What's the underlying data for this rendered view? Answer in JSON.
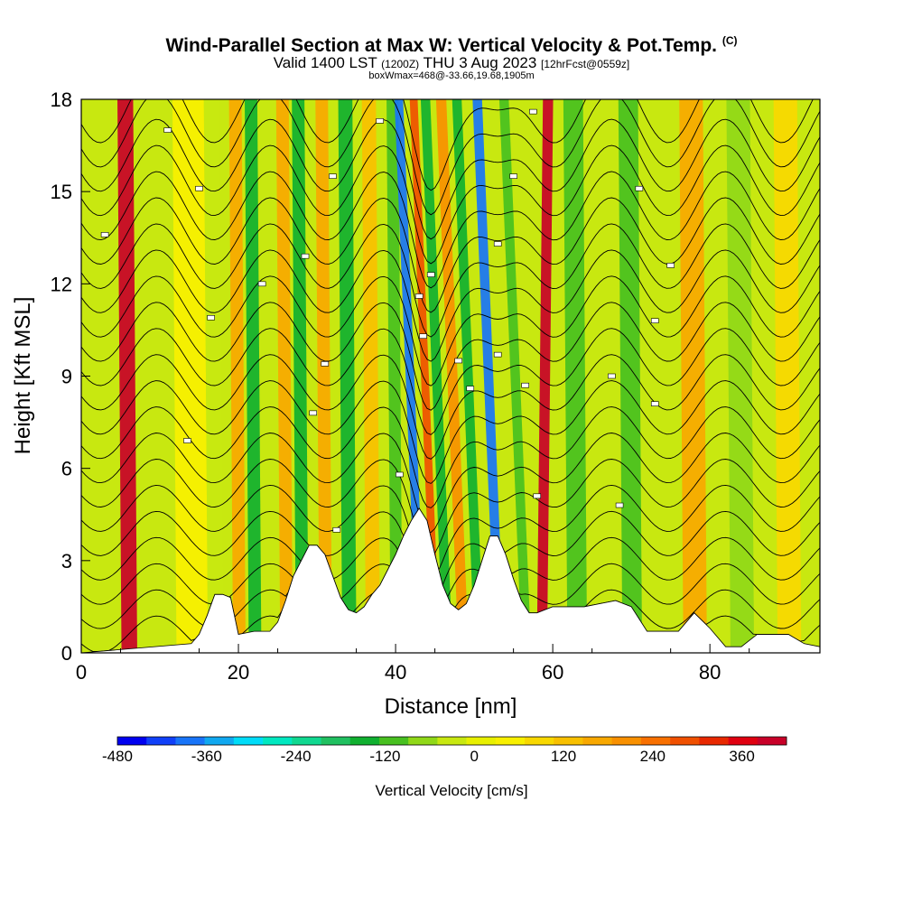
{
  "header": {
    "title": "Wind-Parallel Section at Max W: Vertical Velocity & Pot.Temp.",
    "copyright": "(C)",
    "valid_prefix": "Valid 1400 LST",
    "utc": "(1200Z)",
    "valid_date": "THU 3 Aug 2023",
    "forecast": "[12hrFcst@0559z]",
    "box_info": "boxWmax=468@-33.66,19.68,1905m"
  },
  "chart_data": {
    "type": "heatmap",
    "xlabel": "Distance [nm]",
    "ylabel": "Height [Kft MSL]",
    "xlim": [
      0,
      94
    ],
    "ylim": [
      0,
      18
    ],
    "x_ticks": [
      0,
      20,
      40,
      60,
      80
    ],
    "y_ticks": [
      0,
      3,
      6,
      9,
      12,
      15,
      18
    ],
    "colorbar": {
      "label": "Vertical Velocity [cm/s]",
      "min": -480,
      "max": 420,
      "tick_values": [
        -480,
        -360,
        -240,
        -120,
        0,
        120,
        240,
        360
      ],
      "tick_labels": [
        "-480",
        "-360",
        "-240",
        "-120",
        "0",
        "120",
        "240",
        "360"
      ],
      "colors": [
        "#0000f0",
        "#1040f8",
        "#1874f8",
        "#10a8f0",
        "#00dcf8",
        "#00e8c0",
        "#10d890",
        "#20c060",
        "#10b030",
        "#48c020",
        "#90d818",
        "#c8e810",
        "#e8f000",
        "#f8f000",
        "#f8d800",
        "#f8c000",
        "#f8a800",
        "#f89000",
        "#f87000",
        "#f05000",
        "#e82800",
        "#e00010",
        "#c80028"
      ]
    },
    "vertical_velocity_bands": [
      {
        "x": 6,
        "w": 400,
        "width": 2
      },
      {
        "x": 14,
        "w": 60,
        "width": 4
      },
      {
        "x": 17,
        "w": -40,
        "width": 2
      },
      {
        "x": 20,
        "w": 180,
        "width": 1.6
      },
      {
        "x": 22,
        "w": -150,
        "width": 1.6
      },
      {
        "x": 26,
        "w": 160,
        "width": 1.6
      },
      {
        "x": 28,
        "w": -160,
        "width": 1.6
      },
      {
        "x": 31,
        "w": 150,
        "width": 1.6
      },
      {
        "x": 34,
        "w": -140,
        "width": 1.8
      },
      {
        "x": 37,
        "w": 140,
        "width": 1.8
      },
      {
        "x": 40,
        "w": -100,
        "width": 1.5
      },
      {
        "x": 42.6,
        "w": -380,
        "width": 1.1
      },
      {
        "x": 44.5,
        "w": 300,
        "width": 1.0
      },
      {
        "x": 46,
        "w": -150,
        "width": 1.2
      },
      {
        "x": 48,
        "w": 200,
        "width": 1.3
      },
      {
        "x": 50,
        "w": -140,
        "width": 1.2
      },
      {
        "x": 52.6,
        "w": -400,
        "width": 1.2
      },
      {
        "x": 56,
        "w": -100,
        "width": 1.2
      },
      {
        "x": 58.8,
        "w": 400,
        "width": 1.3
      },
      {
        "x": 63,
        "w": -120,
        "width": 2.5
      },
      {
        "x": 70,
        "w": -90,
        "width": 2.5
      },
      {
        "x": 78,
        "w": 150,
        "width": 3
      },
      {
        "x": 84,
        "w": -60,
        "width": 3
      },
      {
        "x": 90,
        "w": 70,
        "width": 3
      }
    ],
    "terrain": {
      "x": [
        0,
        14,
        15,
        16,
        17,
        18,
        19,
        20,
        22,
        24,
        25,
        26,
        27,
        28,
        29,
        30,
        31,
        32,
        33,
        34,
        35,
        36,
        37,
        38,
        39,
        40,
        41,
        42,
        43,
        44,
        45,
        46,
        47,
        48,
        49,
        50,
        51,
        52,
        53,
        54,
        55,
        56,
        57,
        58,
        60,
        62,
        64,
        66,
        68,
        70,
        72,
        74,
        76,
        78,
        80,
        82,
        84,
        86,
        88,
        90,
        92,
        94
      ],
      "y": [
        0,
        0.3,
        0.6,
        1.2,
        1.9,
        1.9,
        1.8,
        0.6,
        0.7,
        0.7,
        1.0,
        1.7,
        2.5,
        3.0,
        3.5,
        3.5,
        3.2,
        2.5,
        1.8,
        1.4,
        1.3,
        1.5,
        1.9,
        2.2,
        2.7,
        3.2,
        3.8,
        4.3,
        4.7,
        4.3,
        3.2,
        2.2,
        1.6,
        1.4,
        1.6,
        2.2,
        3.0,
        3.8,
        3.8,
        3.2,
        2.4,
        1.7,
        1.3,
        1.3,
        1.5,
        1.5,
        1.5,
        1.6,
        1.7,
        1.5,
        0.7,
        0.7,
        0.7,
        1.3,
        0.8,
        0.2,
        0.2,
        0.6,
        0.6,
        0.6,
        0.3,
        0.2
      ]
    },
    "potential_temperature_contours": {
      "levels": 22,
      "labels": [
        {
          "x": 11,
          "y": 17.0
        },
        {
          "x": 15,
          "y": 15.1
        },
        {
          "x": 3,
          "y": 13.6
        },
        {
          "x": 23,
          "y": 12.0
        },
        {
          "x": 28.5,
          "y": 12.9
        },
        {
          "x": 32,
          "y": 15.5
        },
        {
          "x": 38,
          "y": 17.3
        },
        {
          "x": 16.5,
          "y": 10.9
        },
        {
          "x": 31,
          "y": 9.4
        },
        {
          "x": 29.5,
          "y": 7.8
        },
        {
          "x": 13.5,
          "y": 6.9
        },
        {
          "x": 40.5,
          "y": 5.8
        },
        {
          "x": 32.5,
          "y": 4.0
        },
        {
          "x": 43,
          "y": 11.6
        },
        {
          "x": 43.5,
          "y": 10.3
        },
        {
          "x": 44.5,
          "y": 12.3
        },
        {
          "x": 48,
          "y": 9.5
        },
        {
          "x": 49.5,
          "y": 8.6
        },
        {
          "x": 53,
          "y": 9.7
        },
        {
          "x": 53,
          "y": 13.3
        },
        {
          "x": 55,
          "y": 15.5
        },
        {
          "x": 56.5,
          "y": 8.7
        },
        {
          "x": 57.5,
          "y": 17.6
        },
        {
          "x": 58,
          "y": 5.1
        },
        {
          "x": 67.5,
          "y": 9.0
        },
        {
          "x": 71,
          "y": 15.1
        },
        {
          "x": 75,
          "y": 12.6
        },
        {
          "x": 73,
          "y": 10.8
        },
        {
          "x": 73,
          "y": 8.1
        },
        {
          "x": 68.5,
          "y": 4.8
        }
      ]
    }
  }
}
